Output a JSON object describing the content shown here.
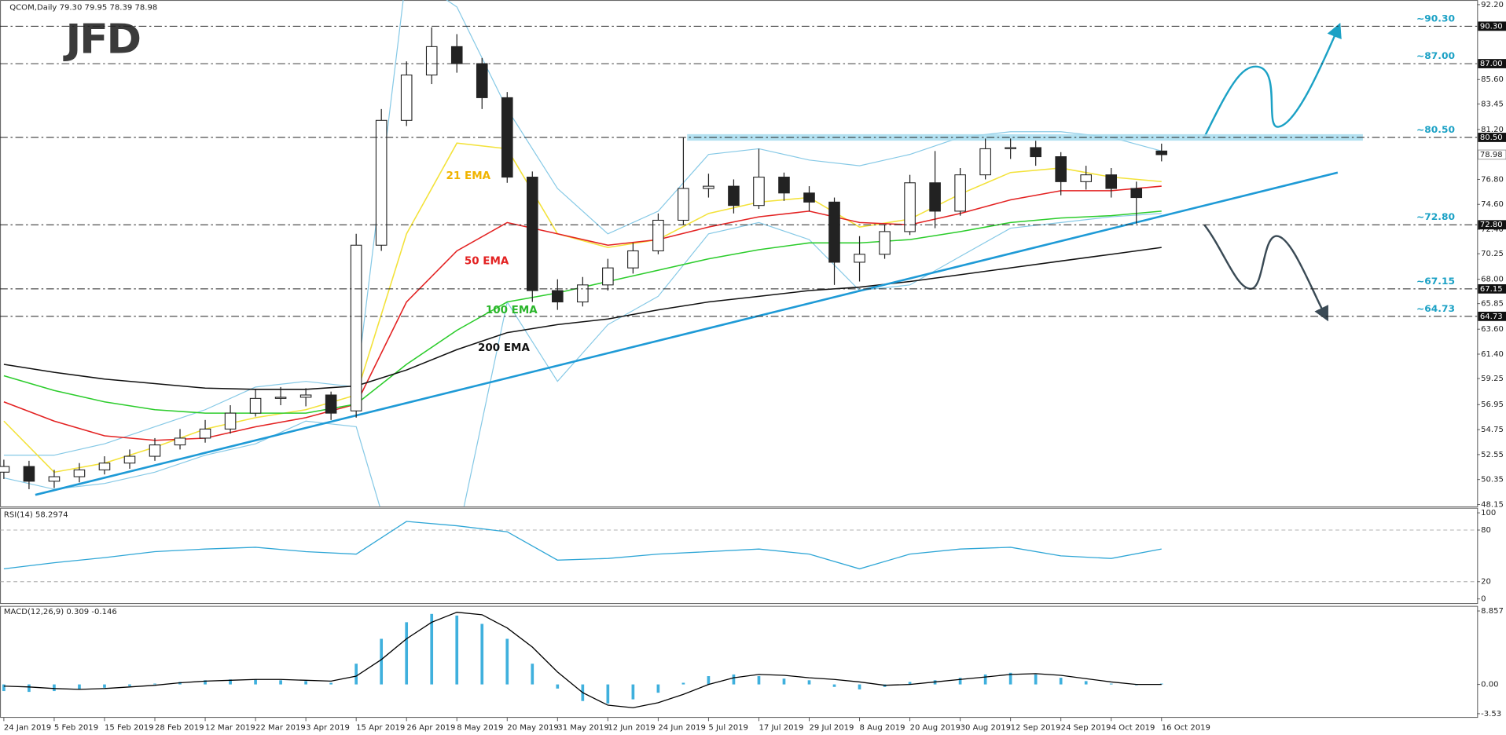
{
  "logo": "JFD",
  "chart_data": [
    {
      "type": "candlestick",
      "title": "QCOM,Daily  79.30 79.95 78.39 78.98",
      "x": [
        0,
        4,
        8,
        12,
        16,
        20,
        24,
        28,
        32,
        36,
        40,
        44,
        48,
        52,
        56,
        60,
        64,
        68,
        72,
        76,
        80,
        84,
        88,
        92,
        96,
        100,
        104,
        108,
        112,
        116,
        120,
        124,
        128,
        132,
        136,
        140,
        144,
        148,
        152,
        156,
        160,
        164,
        168,
        172,
        176,
        180,
        184
      ],
      "open": [
        51.0,
        51.5,
        50.2,
        50.6,
        51.2,
        51.8,
        52.4,
        53.4,
        54.0,
        54.8,
        56.2,
        57.5,
        57.6,
        57.8,
        56.4,
        71.0,
        82.0,
        86.0,
        88.5,
        87.0,
        84.0,
        77.0,
        67.0,
        66.0,
        67.5,
        69.0,
        70.5,
        73.2,
        76.0,
        76.2,
        74.5,
        77.0,
        75.6,
        74.8,
        69.5,
        70.2,
        72.2,
        76.5,
        74.0,
        77.2,
        79.5,
        79.6,
        78.8,
        76.6,
        77.2,
        76.0,
        79.3
      ],
      "high": [
        52.1,
        52.0,
        51.2,
        51.8,
        52.4,
        53.0,
        54.0,
        54.8,
        55.6,
        56.9,
        58.3,
        58.5,
        58.4,
        58.1,
        72.0,
        83.0,
        87.2,
        90.2,
        89.6,
        87.5,
        84.5,
        77.5,
        68.0,
        68.2,
        69.8,
        71.2,
        73.8,
        80.5,
        77.3,
        76.8,
        79.5,
        77.4,
        76.2,
        75.2,
        71.8,
        72.8,
        77.2,
        79.3,
        77.8,
        80.4,
        80.4,
        80.2,
        79.2,
        78.0,
        77.8,
        76.6,
        79.95
      ],
      "low": [
        50.4,
        49.5,
        49.6,
        50.1,
        50.8,
        51.3,
        52.0,
        53.0,
        53.6,
        54.4,
        55.9,
        56.9,
        56.8,
        55.6,
        55.8,
        70.5,
        81.5,
        85.2,
        86.2,
        83.0,
        76.5,
        66.0,
        65.3,
        65.6,
        67.0,
        68.5,
        70.2,
        72.8,
        75.2,
        73.8,
        74.2,
        74.9,
        74.0,
        67.5,
        67.8,
        69.8,
        71.9,
        72.5,
        73.6,
        76.8,
        78.6,
        78.0,
        75.4,
        75.9,
        75.2,
        72.9,
        78.39
      ],
      "close": [
        51.5,
        50.2,
        50.6,
        51.2,
        51.8,
        52.4,
        53.4,
        54.0,
        54.8,
        56.2,
        57.5,
        57.6,
        57.8,
        56.2,
        71.0,
        82.0,
        86.0,
        88.5,
        87.0,
        84.0,
        77.0,
        67.0,
        66.0,
        67.5,
        69.0,
        70.5,
        73.2,
        76.0,
        76.2,
        74.5,
        77.0,
        75.6,
        74.8,
        69.5,
        70.2,
        72.2,
        76.5,
        74.0,
        77.2,
        79.5,
        79.6,
        78.8,
        76.6,
        77.2,
        76.0,
        75.2,
        78.98
      ],
      "up_color": "#ffffff",
      "down_color": "#222222",
      "xlim": [
        0,
        234
      ],
      "ylim": [
        48.15,
        92.2
      ],
      "xticks": [
        {
          "value": 0,
          "label": "24 Jan 2019"
        },
        {
          "value": 8,
          "label": "5 Feb 2019"
        },
        {
          "value": 16,
          "label": "15 Feb 2019"
        },
        {
          "value": 24,
          "label": "28 Feb 2019"
        },
        {
          "value": 32,
          "label": "12 Mar 2019"
        },
        {
          "value": 40,
          "label": "22 Mar 2019"
        },
        {
          "value": 48,
          "label": "3 Apr 2019"
        },
        {
          "value": 56,
          "label": "15 Apr 2019"
        },
        {
          "value": 64,
          "label": "26 Apr 2019"
        },
        {
          "value": 72,
          "label": "8 May 2019"
        },
        {
          "value": 80,
          "label": "20 May 2019"
        },
        {
          "value": 88,
          "label": "31 May 2019"
        },
        {
          "value": 96,
          "label": "12 Jun 2019"
        },
        {
          "value": 104,
          "label": "24 Jun 2019"
        },
        {
          "value": 112,
          "label": "5 Jul 2019"
        },
        {
          "value": 120,
          "label": "17 Jul 2019"
        },
        {
          "value": 128,
          "label": "29 Jul 2019"
        },
        {
          "value": 136,
          "label": "8 Aug 2019"
        },
        {
          "value": 144,
          "label": "20 Aug 2019"
        },
        {
          "value": 152,
          "label": "30 Aug 2019"
        },
        {
          "value": 160,
          "label": "12 Sep 2019"
        },
        {
          "value": 168,
          "label": "24 Sep 2019"
        },
        {
          "value": 176,
          "label": "4 Oct 2019"
        },
        {
          "value": 184,
          "label": "16 Oct 2019"
        }
      ],
      "yticks": [
        {
          "value": 92.2,
          "label": "92.20"
        },
        {
          "value": 85.6,
          "label": "85.60"
        },
        {
          "value": 83.45,
          "label": "83.45"
        },
        {
          "value": 81.2,
          "label": "81.20"
        },
        {
          "value": 76.8,
          "label": "76.80"
        },
        {
          "value": 74.6,
          "label": "74.60"
        },
        {
          "value": 72.4,
          "label": "72.40"
        },
        {
          "value": 70.25,
          "label": "70.25"
        },
        {
          "value": 68.0,
          "label": "68.00"
        },
        {
          "value": 65.85,
          "label": "65.85"
        },
        {
          "value": 63.6,
          "label": "63.60"
        },
        {
          "value": 61.4,
          "label": "61.40"
        },
        {
          "value": 59.25,
          "label": "59.25"
        },
        {
          "value": 56.95,
          "label": "56.95"
        },
        {
          "value": 54.75,
          "label": "54.75"
        },
        {
          "value": 52.55,
          "label": "52.55"
        },
        {
          "value": 50.35,
          "label": "50.35"
        },
        {
          "value": 48.15,
          "label": "48.15"
        }
      ],
      "ema_x": [
        0,
        8,
        16,
        24,
        32,
        40,
        48,
        56,
        64,
        72,
        80,
        88,
        96,
        104,
        112,
        120,
        128,
        136,
        144,
        152,
        160,
        168,
        176,
        184
      ],
      "lines": [
        {
          "name": "21 EMA",
          "color": "#f3e23a",
          "label_color": "#f0b400",
          "values": [
            55.5,
            51.0,
            51.8,
            53.2,
            54.8,
            55.8,
            56.5,
            57.8,
            72.0,
            80.0,
            79.5,
            72.0,
            70.8,
            71.5,
            73.8,
            74.8,
            75.2,
            72.6,
            73.3,
            75.5,
            77.4,
            77.8,
            77.0,
            76.6
          ]
        },
        {
          "name": "50 EMA",
          "color": "#e32222",
          "label_color": "#e32222",
          "values": [
            57.2,
            55.5,
            54.2,
            53.8,
            54.0,
            55.0,
            55.8,
            57.0,
            66.0,
            70.5,
            73.0,
            72.0,
            71.0,
            71.5,
            72.6,
            73.5,
            74.0,
            73.0,
            72.8,
            73.8,
            75.0,
            75.8,
            75.8,
            76.2
          ]
        },
        {
          "name": "100 EMA",
          "color": "#2ccc2c",
          "label_color": "#2ab52a",
          "values": [
            59.5,
            58.2,
            57.2,
            56.5,
            56.2,
            56.2,
            56.2,
            57.0,
            60.5,
            63.5,
            66.0,
            66.8,
            67.8,
            68.8,
            69.8,
            70.6,
            71.2,
            71.2,
            71.5,
            72.2,
            73.0,
            73.4,
            73.6,
            74.0
          ]
        },
        {
          "name": "200 EMA",
          "color": "#111111",
          "label_color": "#111111",
          "values": [
            60.5,
            59.8,
            59.2,
            58.8,
            58.4,
            58.3,
            58.3,
            58.6,
            60.0,
            61.8,
            63.3,
            64.0,
            64.5,
            65.3,
            66.0,
            66.5,
            67.0,
            67.3,
            67.8,
            68.4,
            69.0,
            69.6,
            70.2,
            70.8
          ]
        }
      ],
      "bands": {
        "color": "#86c9e6",
        "upper": [
          52.5,
          52.5,
          53.5,
          55.0,
          56.5,
          58.5,
          59.0,
          58.5,
          95.0,
          92.0,
          83.0,
          76.0,
          72.0,
          74.0,
          79.0,
          79.5,
          78.5,
          78.0,
          79.0,
          80.5,
          81.0,
          81.0,
          80.5,
          79.3
        ],
        "lower": [
          50.5,
          49.5,
          50.0,
          51.0,
          52.5,
          53.5,
          55.5,
          55.0,
          40.0,
          45.0,
          66.0,
          59.0,
          64.0,
          66.5,
          72.0,
          73.0,
          71.5,
          67.0,
          67.5,
          70.0,
          72.5,
          73.0,
          73.5,
          73.8
        ]
      },
      "trendline": {
        "color": "#1e9ad6",
        "x": [
          5,
          212
        ],
        "values": [
          49.0,
          77.4
        ]
      },
      "resistance": {
        "color": "#a6dcef",
        "x": [
          108.6,
          216
        ],
        "value": 80.5
      },
      "level_color": "#1ba1c5",
      "levels": [
        {
          "value": 90.3,
          "label": "~90.30",
          "axis_label": "90.30"
        },
        {
          "value": 87.0,
          "label": "~87.00",
          "axis_label": "87.00"
        },
        {
          "value": 80.5,
          "label": "~80.50",
          "axis_label": "80.50"
        },
        {
          "value": 72.8,
          "label": "~72.80",
          "axis_label": "72.80"
        },
        {
          "value": 67.15,
          "label": "~67.15",
          "axis_label": "67.15"
        },
        {
          "value": 64.73,
          "label": "~64.73",
          "axis_label": "64.73"
        }
      ],
      "last": {
        "value": 78.98,
        "label": "78.98"
      }
    },
    {
      "type": "line",
      "title": "RSI(14) 58.2974",
      "color": "#2fa6d6",
      "x": [
        0,
        8,
        16,
        24,
        32,
        40,
        48,
        56,
        64,
        72,
        80,
        88,
        96,
        104,
        112,
        120,
        128,
        136,
        144,
        152,
        160,
        168,
        176,
        184
      ],
      "values": [
        35,
        42,
        48,
        55,
        58,
        60,
        55,
        52,
        90,
        85,
        78,
        45,
        47,
        52,
        55,
        58,
        52,
        35,
        52,
        58,
        60,
        50,
        47,
        58
      ],
      "xlim": [
        0,
        234
      ],
      "ylim": [
        0,
        100
      ],
      "yticks": [
        0,
        20,
        80,
        100
      ]
    },
    {
      "type": "bar",
      "title": "MACD(12,26,9) 0.309 -0.146",
      "color": "#3fb0dd",
      "x": [
        0,
        4,
        8,
        12,
        16,
        20,
        24,
        28,
        32,
        36,
        40,
        44,
        48,
        52,
        56,
        60,
        64,
        68,
        72,
        76,
        80,
        84,
        88,
        92,
        96,
        100,
        104,
        108,
        112,
        116,
        120,
        124,
        128,
        132,
        136,
        140,
        144,
        148,
        152,
        156,
        160,
        164,
        168,
        172,
        176,
        180,
        184
      ],
      "values": [
        -0.8,
        -0.9,
        -0.8,
        -0.6,
        -0.4,
        -0.2,
        0.1,
        0.3,
        0.5,
        0.6,
        0.6,
        0.5,
        0.4,
        0.2,
        2.5,
        5.5,
        7.5,
        8.5,
        8.3,
        7.3,
        5.5,
        2.5,
        -0.5,
        -2.0,
        -2.3,
        -1.8,
        -1.0,
        0.2,
        1.0,
        1.2,
        1.0,
        0.7,
        0.5,
        -0.3,
        -0.6,
        -0.3,
        0.3,
        0.5,
        0.8,
        1.2,
        1.4,
        1.2,
        0.8,
        0.4,
        0.1,
        -0.1,
        0.1
      ],
      "signal": {
        "color": "#000000",
        "values": [
          -0.2,
          -0.3,
          -0.5,
          -0.6,
          -0.5,
          -0.3,
          -0.1,
          0.2,
          0.4,
          0.5,
          0.6,
          0.6,
          0.5,
          0.4,
          1.0,
          3.0,
          5.5,
          7.5,
          8.7,
          8.4,
          6.8,
          4.5,
          1.5,
          -1.0,
          -2.5,
          -2.8,
          -2.2,
          -1.2,
          0.0,
          0.8,
          1.2,
          1.1,
          0.8,
          0.6,
          0.3,
          -0.1,
          0.0,
          0.3,
          0.6,
          0.9,
          1.2,
          1.3,
          1.1,
          0.7,
          0.3,
          0.0,
          0.0
        ]
      },
      "xlim": [
        0,
        234
      ],
      "ylim": [
        -3.53,
        8.857
      ],
      "yticks": [
        8.857,
        {
          "value": 0,
          "label": "0.00"
        },
        -3.53
      ]
    }
  ]
}
